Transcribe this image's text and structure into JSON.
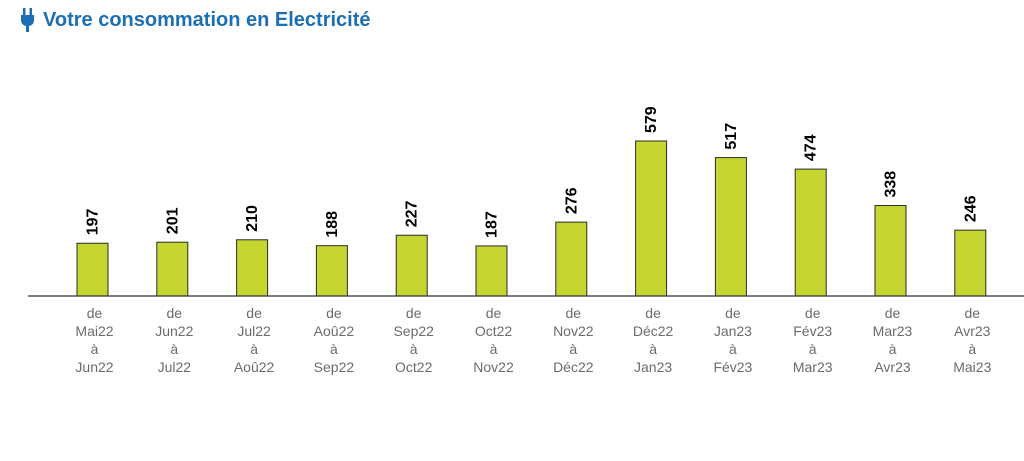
{
  "header": {
    "title": "Votre consommation en Electricité",
    "icon": "plug-icon",
    "color": "#1c6fb4"
  },
  "chart_data": {
    "type": "bar",
    "title": "Votre consommation en Electricité",
    "xlabel": "",
    "ylabel": "",
    "ylim": [
      0,
      600
    ],
    "grid": false,
    "bar_color": "#c6d630",
    "categories": [
      [
        "de",
        "Mai22",
        "à",
        "Jun22"
      ],
      [
        "de",
        "Jun22",
        "à",
        "Jul22"
      ],
      [
        "de",
        "Jul22",
        "à",
        "Aoû22"
      ],
      [
        "de",
        "Aoû22",
        "à",
        "Sep22"
      ],
      [
        "de",
        "Sep22",
        "à",
        "Oct22"
      ],
      [
        "de",
        "Oct22",
        "à",
        "Nov22"
      ],
      [
        "de",
        "Nov22",
        "à",
        "Déc22"
      ],
      [
        "de",
        "Déc22",
        "à",
        "Jan23"
      ],
      [
        "de",
        "Jan23",
        "à",
        "Fév23"
      ],
      [
        "de",
        "Fév23",
        "à",
        "Mar23"
      ],
      [
        "de",
        "Mar23",
        "à",
        "Avr23"
      ],
      [
        "de",
        "Avr23",
        "à",
        "Mai23"
      ]
    ],
    "values": [
      197,
      201,
      210,
      188,
      227,
      187,
      276,
      579,
      517,
      474,
      338,
      246
    ]
  }
}
